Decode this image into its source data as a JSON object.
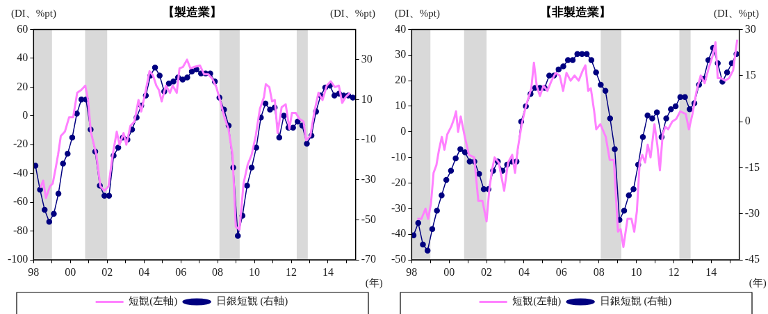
{
  "chart_data": [
    {
      "type": "line",
      "title": "【製造業】",
      "ylabel": "(DI、%pt)",
      "y2label": "(DI、%pt)",
      "xlabel": "(年)",
      "xlim": [
        1998,
        2015.5
      ],
      "xticks": [
        {
          "value": 1998,
          "label": "98"
        },
        {
          "value": 1999,
          "label": null
        },
        {
          "value": 2000,
          "label": "00"
        },
        {
          "value": 2001,
          "label": null
        },
        {
          "value": 2002,
          "label": "02"
        },
        {
          "value": 2003,
          "label": null
        },
        {
          "value": 2004,
          "label": "04"
        },
        {
          "value": 2005,
          "label": null
        },
        {
          "value": 2006,
          "label": "06"
        },
        {
          "value": 2007,
          "label": null
        },
        {
          "value": 2008,
          "label": "08"
        },
        {
          "value": 2009,
          "label": null
        },
        {
          "value": 2010,
          "label": "10"
        },
        {
          "value": 2011,
          "label": null
        },
        {
          "value": 2012,
          "label": "12"
        },
        {
          "value": 2013,
          "label": null
        },
        {
          "value": 2014,
          "label": "14"
        },
        {
          "value": 2015,
          "label": null
        }
      ],
      "ylim": [
        -100,
        60
      ],
      "yticks": [
        -100,
        -80,
        -60,
        -40,
        -20,
        0,
        20,
        40,
        60
      ],
      "y2lim": [
        -70,
        45
      ],
      "y2ticks": [
        -70,
        -50,
        -30,
        -10,
        10,
        30
      ],
      "legend": "bottom",
      "grid": false,
      "bands": [
        {
          "axis": "x",
          "from": 1998,
          "to": 1999,
          "color": "#d9d9d9"
        },
        {
          "axis": "x",
          "from": 2000.8,
          "to": 2002,
          "color": "#d9d9d9"
        },
        {
          "axis": "x",
          "from": 2008.1,
          "to": 2009.2,
          "color": "#d9d9d9"
        },
        {
          "axis": "x",
          "from": 2012.3,
          "to": 2012.9,
          "color": "#d9d9d9"
        }
      ],
      "series": [
        {
          "name": "短観(左軸)",
          "color": "#ff80ff",
          "marker": "none",
          "x": [
            1998.37,
            1998.52,
            1998.67,
            1998.89,
            1999.04,
            1999.19,
            1999.33,
            1999.48,
            1999.7,
            1999.93,
            2000.15,
            2000.37,
            2000.59,
            2000.81,
            2000.96,
            2001.11,
            2001.41,
            2001.63,
            2001.85,
            2002.07,
            2002.3,
            2002.52,
            2002.67,
            2002.89,
            2003.04,
            2003.26,
            2003.48,
            2003.7,
            2003.85,
            2004.07,
            2004.3,
            2004.49,
            2004.67,
            2004.81,
            2004.96,
            2005.19,
            2005.41,
            2005.56,
            2005.78,
            2005.93,
            2006.12,
            2006.34,
            2006.52,
            2006.74,
            2007.04,
            2007.26,
            2007.48,
            2007.7,
            2007.93,
            2008.15,
            2008.37,
            2008.59,
            2008.81,
            2008.99,
            2009.19,
            2009.41,
            2009.63,
            2009.85,
            2010.07,
            2010.3,
            2010.52,
            2010.62,
            2010.81,
            2010.96,
            2011.11,
            2011.26,
            2011.48,
            2011.7,
            2011.9,
            2012.04,
            2012.25,
            2012.44,
            2012.67,
            2012.81,
            2013.04,
            2013.26,
            2013.48,
            2013.7,
            2013.93,
            2014.15,
            2014.37,
            2014.59,
            2014.77,
            2014.96,
            2015.19
          ],
          "values": [
            -50,
            -45,
            -57,
            -49,
            -47,
            -37,
            -27,
            -14,
            -11,
            -1,
            -1,
            16,
            18,
            21,
            11,
            -11,
            -27,
            -49,
            -52,
            -49,
            -27,
            -11,
            -20,
            -12,
            -20,
            -7,
            -4,
            11,
            3,
            16,
            31,
            28,
            21,
            18,
            10,
            21,
            16,
            21,
            16,
            33,
            34,
            39,
            33,
            34,
            35,
            29,
            29,
            26,
            20,
            10,
            -1,
            -9,
            -27,
            -77,
            -79,
            -47,
            -34,
            -27,
            -14,
            5,
            13,
            22,
            20,
            10,
            11,
            -12,
            6,
            8,
            -9,
            2,
            2,
            -2,
            -4,
            -17,
            -14,
            3,
            16,
            11,
            21,
            24,
            20,
            21,
            9,
            13,
            16
          ]
        },
        {
          "name": "日銀短観 (右軸)",
          "color": "#000080",
          "marker": "circle",
          "axis": "y2",
          "x": [
            1998.1,
            1998.35,
            1998.6,
            1998.85,
            1999.1,
            1999.35,
            1999.6,
            1999.85,
            2000.1,
            2000.35,
            2000.6,
            2000.85,
            2001.1,
            2001.35,
            2001.6,
            2001.85,
            2002.1,
            2002.35,
            2002.6,
            2002.85,
            2003.1,
            2003.35,
            2003.6,
            2003.85,
            2004.1,
            2004.35,
            2004.6,
            2004.85,
            2005.1,
            2005.35,
            2005.6,
            2005.85,
            2006.1,
            2006.35,
            2006.6,
            2006.85,
            2007.1,
            2007.35,
            2007.6,
            2007.85,
            2008.1,
            2008.35,
            2008.6,
            2008.85,
            2009.1,
            2009.35,
            2009.6,
            2009.85,
            2010.1,
            2010.35,
            2010.6,
            2010.85,
            2011.1,
            2011.35,
            2011.6,
            2011.85,
            2012.1,
            2012.35,
            2012.6,
            2012.85,
            2013.1,
            2013.35,
            2013.6,
            2013.85,
            2014.1,
            2014.35,
            2014.6,
            2014.85,
            2015.1,
            2015.35
          ],
          "values": [
            -23,
            -35,
            -45,
            -51,
            -47,
            -37,
            -22,
            -17,
            -9,
            3,
            10,
            10,
            -5,
            -16,
            -33,
            -38,
            -38,
            -18,
            -14,
            -9,
            -10,
            -5,
            1,
            7,
            12,
            22,
            26,
            22,
            14,
            18,
            19,
            21,
            20,
            21,
            24,
            25,
            23,
            23,
            23,
            19,
            11,
            5,
            -3,
            -24,
            -58,
            -48,
            -33,
            -24,
            -14,
            1,
            8,
            5,
            6,
            -9,
            2,
            -4,
            -4,
            -1,
            -3,
            -12,
            -8,
            4,
            12,
            16,
            17,
            12,
            13,
            12,
            12,
            11
          ]
        }
      ]
    },
    {
      "type": "line",
      "title": "【非製造業】",
      "ylabel": "(DI、%pt)",
      "y2label": "(DI、%pt)",
      "xlabel": "(年)",
      "xlim": [
        1998,
        2015.5
      ],
      "xticks": [
        {
          "value": 1998,
          "label": "98"
        },
        {
          "value": 1999,
          "label": null
        },
        {
          "value": 2000,
          "label": "00"
        },
        {
          "value": 2001,
          "label": null
        },
        {
          "value": 2002,
          "label": "02"
        },
        {
          "value": 2003,
          "label": null
        },
        {
          "value": 2004,
          "label": "04"
        },
        {
          "value": 2005,
          "label": null
        },
        {
          "value": 2006,
          "label": "06"
        },
        {
          "value": 2007,
          "label": null
        },
        {
          "value": 2008,
          "label": "08"
        },
        {
          "value": 2009,
          "label": null
        },
        {
          "value": 2010,
          "label": "10"
        },
        {
          "value": 2011,
          "label": null
        },
        {
          "value": 2012,
          "label": "12"
        },
        {
          "value": 2013,
          "label": null
        },
        {
          "value": 2014,
          "label": "14"
        },
        {
          "value": 2015,
          "label": null
        }
      ],
      "ylim": [
        -50,
        40
      ],
      "yticks": [
        -50,
        -40,
        -30,
        -20,
        -10,
        0,
        10,
        20,
        30,
        40
      ],
      "y2lim": [
        -45,
        30
      ],
      "y2ticks": [
        -45,
        -30,
        -15,
        0,
        15,
        30
      ],
      "legend": "bottom",
      "grid": false,
      "bands": [
        {
          "axis": "x",
          "from": 1998,
          "to": 1999,
          "color": "#d9d9d9"
        },
        {
          "axis": "x",
          "from": 2000.8,
          "to": 2002,
          "color": "#d9d9d9"
        },
        {
          "axis": "x",
          "from": 2008.1,
          "to": 2009.2,
          "color": "#d9d9d9"
        },
        {
          "axis": "x",
          "from": 2012.3,
          "to": 2012.9,
          "color": "#d9d9d9"
        }
      ],
      "series": [
        {
          "name": "短観(左軸)",
          "color": "#ff80ff",
          "marker": "none",
          "x": [
            1998.3,
            1998.52,
            1998.74,
            1998.88,
            1999.03,
            1999.17,
            1999.32,
            1999.46,
            1999.61,
            1999.75,
            1999.9,
            2000.11,
            2000.26,
            2000.37,
            2000.48,
            2000.62,
            2000.84,
            2001.06,
            2001.34,
            2001.56,
            2001.78,
            2002,
            2002.14,
            2002.29,
            2002.43,
            2002.65,
            2002.94,
            2003.15,
            2003.37,
            2003.52,
            2003.66,
            2003.88,
            2004.1,
            2004.39,
            2004.53,
            2004.68,
            2004.85,
            2005.04,
            2005.25,
            2005.47,
            2005.69,
            2005.91,
            2006.09,
            2006.27,
            2006.49,
            2006.7,
            2006.92,
            2007.14,
            2007.28,
            2007.43,
            2007.57,
            2007.75,
            2007.86,
            2008.08,
            2008.37,
            2008.58,
            2008.8,
            2009.02,
            2009.16,
            2009.31,
            2009.53,
            2009.74,
            2009.89,
            2010.03,
            2010.18,
            2010.32,
            2010.47,
            2010.61,
            2010.76,
            2010.97,
            2011.12,
            2011.26,
            2011.41,
            2011.55,
            2011.7,
            2011.92,
            2012.13,
            2012.35,
            2012.64,
            2012.81,
            2013,
            2013.22,
            2013.44,
            2013.65,
            2013.87,
            2014.09,
            2014.23,
            2014.35,
            2014.52,
            2014.74,
            2014.96,
            2015.17,
            2015.39
          ],
          "values": [
            -34,
            -34,
            -30,
            -34,
            -28,
            -16,
            -13,
            -7,
            -2,
            -7,
            -1,
            2,
            5,
            8,
            0,
            6,
            -2,
            -9,
            -10,
            -27,
            -27,
            -35,
            -23,
            -15,
            -10,
            -12,
            -23,
            -12,
            -9,
            -16,
            -7,
            3,
            10,
            17,
            27,
            18,
            14,
            18,
            16,
            20,
            23,
            22,
            16,
            23,
            20,
            22,
            20,
            24,
            26,
            16,
            17,
            8,
            1,
            3,
            -2,
            -11,
            -11,
            -39,
            -38,
            -45,
            -34,
            -34,
            -39,
            -31,
            -12,
            -9,
            -12,
            -5,
            -10,
            3,
            -5,
            -15,
            -1,
            2,
            1,
            4,
            5,
            8,
            7,
            1,
            7,
            16,
            22,
            19,
            25,
            30,
            35,
            21,
            21,
            20,
            21,
            24,
            36
          ]
        },
        {
          "name": "日銀短観 (右軸)",
          "color": "#000080",
          "marker": "circle",
          "axis": "y2",
          "x": [
            1998.1,
            1998.35,
            1998.6,
            1998.85,
            1999.1,
            1999.35,
            1999.6,
            1999.85,
            2000.1,
            2000.35,
            2000.6,
            2000.85,
            2001.1,
            2001.35,
            2001.6,
            2001.85,
            2002.1,
            2002.35,
            2002.6,
            2002.85,
            2003.1,
            2003.35,
            2003.6,
            2003.85,
            2004.1,
            2004.35,
            2004.6,
            2004.85,
            2005.1,
            2005.35,
            2005.6,
            2005.85,
            2006.1,
            2006.35,
            2006.6,
            2006.85,
            2007.1,
            2007.35,
            2007.6,
            2007.85,
            2008.1,
            2008.35,
            2008.6,
            2008.85,
            2009.1,
            2009.35,
            2009.6,
            2009.85,
            2010.1,
            2010.35,
            2010.6,
            2010.85,
            2011.1,
            2011.35,
            2011.6,
            2011.85,
            2012.1,
            2012.35,
            2012.6,
            2012.85,
            2013.1,
            2013.35,
            2013.6,
            2013.85,
            2014.1,
            2014.35,
            2014.6,
            2014.85,
            2015.1,
            2015.35
          ],
          "values": [
            -37,
            -33,
            -40,
            -42,
            -35,
            -29,
            -24,
            -19,
            -16,
            -12,
            -9,
            -10,
            -13,
            -13,
            -17,
            -22,
            -22,
            -16,
            -13,
            -16,
            -14,
            -13,
            -13,
            0,
            5,
            9,
            11,
            11,
            11,
            15,
            15,
            17,
            18,
            20,
            20,
            22,
            22,
            22,
            20,
            16,
            12,
            10,
            1,
            -9,
            -32,
            -29,
            -24,
            -22,
            -14,
            -5,
            2,
            1,
            3,
            -5,
            1,
            4,
            5,
            8,
            8,
            4,
            6,
            12,
            14,
            20,
            24,
            19,
            13,
            16,
            19,
            22
          ]
        }
      ]
    }
  ]
}
